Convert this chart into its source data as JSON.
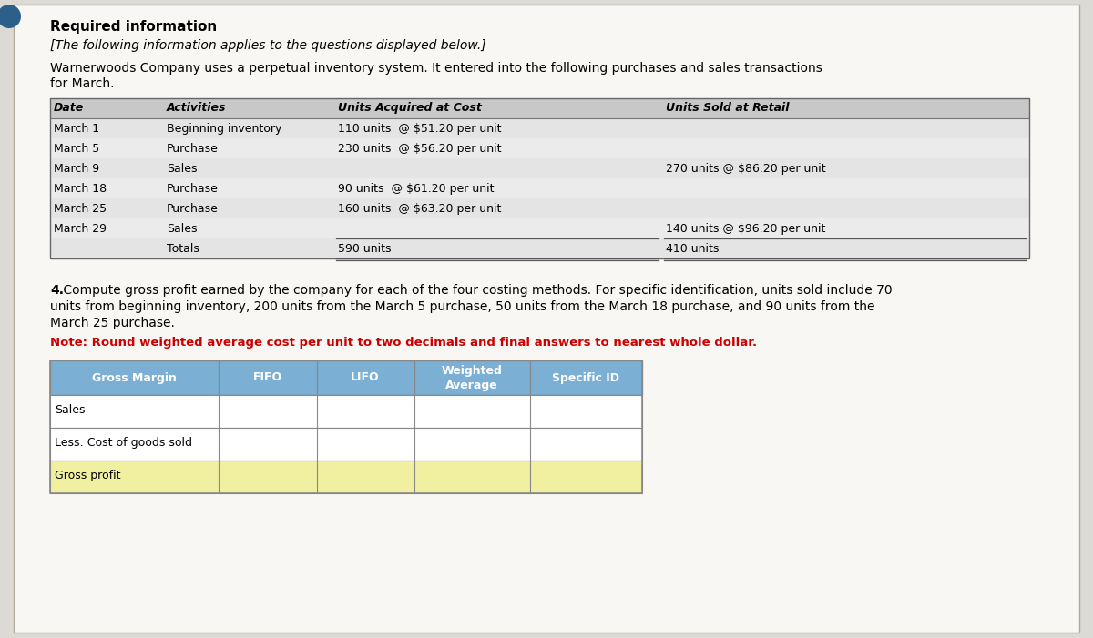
{
  "bg_color": "#dcdad5",
  "page_bg": "#f5f4f0",
  "card_bg": "#f8f7f3",
  "title1": "Required information",
  "title2": "[The following information applies to the questions displayed below.]",
  "intro_line1": "Warnerwoods Company uses a perpetual inventory system. It entered into the following purchases and sales transactions",
  "intro_line2": "for March.",
  "table1_headers": [
    "Date",
    "Activities",
    "Units Acquired at Cost",
    "Units Sold at Retail"
  ],
  "table1_rows": [
    [
      "March 1",
      "Beginning inventory",
      "110 units  @ $51.20 per unit",
      ""
    ],
    [
      "March 5",
      "Purchase",
      "230 units  @ $56.20 per unit",
      ""
    ],
    [
      "March 9",
      "Sales",
      "",
      "270 units @ $86.20 per unit"
    ],
    [
      "March 18",
      "Purchase",
      "90 units  @ $61.20 per unit",
      ""
    ],
    [
      "March 25",
      "Purchase",
      "160 units  @ $63.20 per unit",
      ""
    ],
    [
      "March 29",
      "Sales",
      "",
      "140 units @ $96.20 per unit"
    ],
    [
      "",
      "Totals",
      "590 units",
      "410 units"
    ]
  ],
  "q4_bold": "4.",
  "q4_text": " Compute gross profit earned by the company for each of the four costing methods. For specific identification, units sold include 70",
  "q4_line2": "units from beginning inventory, 200 units from the March 5 purchase, 50 units from the March 18 purchase, and 90 units from the",
  "q4_line3": "March 25 purchase.",
  "note_text": "Note: Round weighted average cost per unit to two decimals and final answers to nearest whole dollar.",
  "table2_headers": [
    "Gross Margin",
    "FIFO",
    "LIFO",
    "Weighted\nAverage",
    "Specific ID"
  ],
  "table2_rows": [
    [
      "Sales",
      "",
      "",
      "",
      ""
    ],
    [
      "Less: Cost of goods sold",
      "",
      "",
      "",
      ""
    ],
    [
      "Gross profit",
      "",
      "",
      "",
      ""
    ]
  ],
  "t2_header_bg": "#7bafd4",
  "t2_header_fg": "#ffffff",
  "t2_gross_profit_bg": "#f0f0a0",
  "t2_row_bg": "#ffffff",
  "note_color": "#cc0000",
  "icon_color": "#2c5f8a",
  "t1_header_bg": "#c8c8c8",
  "t1_row_bg": "#e0e0e0",
  "border_color": "#888888",
  "font_family": "DejaVu Sans",
  "fs_title1": 11,
  "fs_title2": 10,
  "fs_intro": 10,
  "fs_t1": 9,
  "fs_q4": 10,
  "fs_note": 9.5,
  "fs_t2": 9
}
